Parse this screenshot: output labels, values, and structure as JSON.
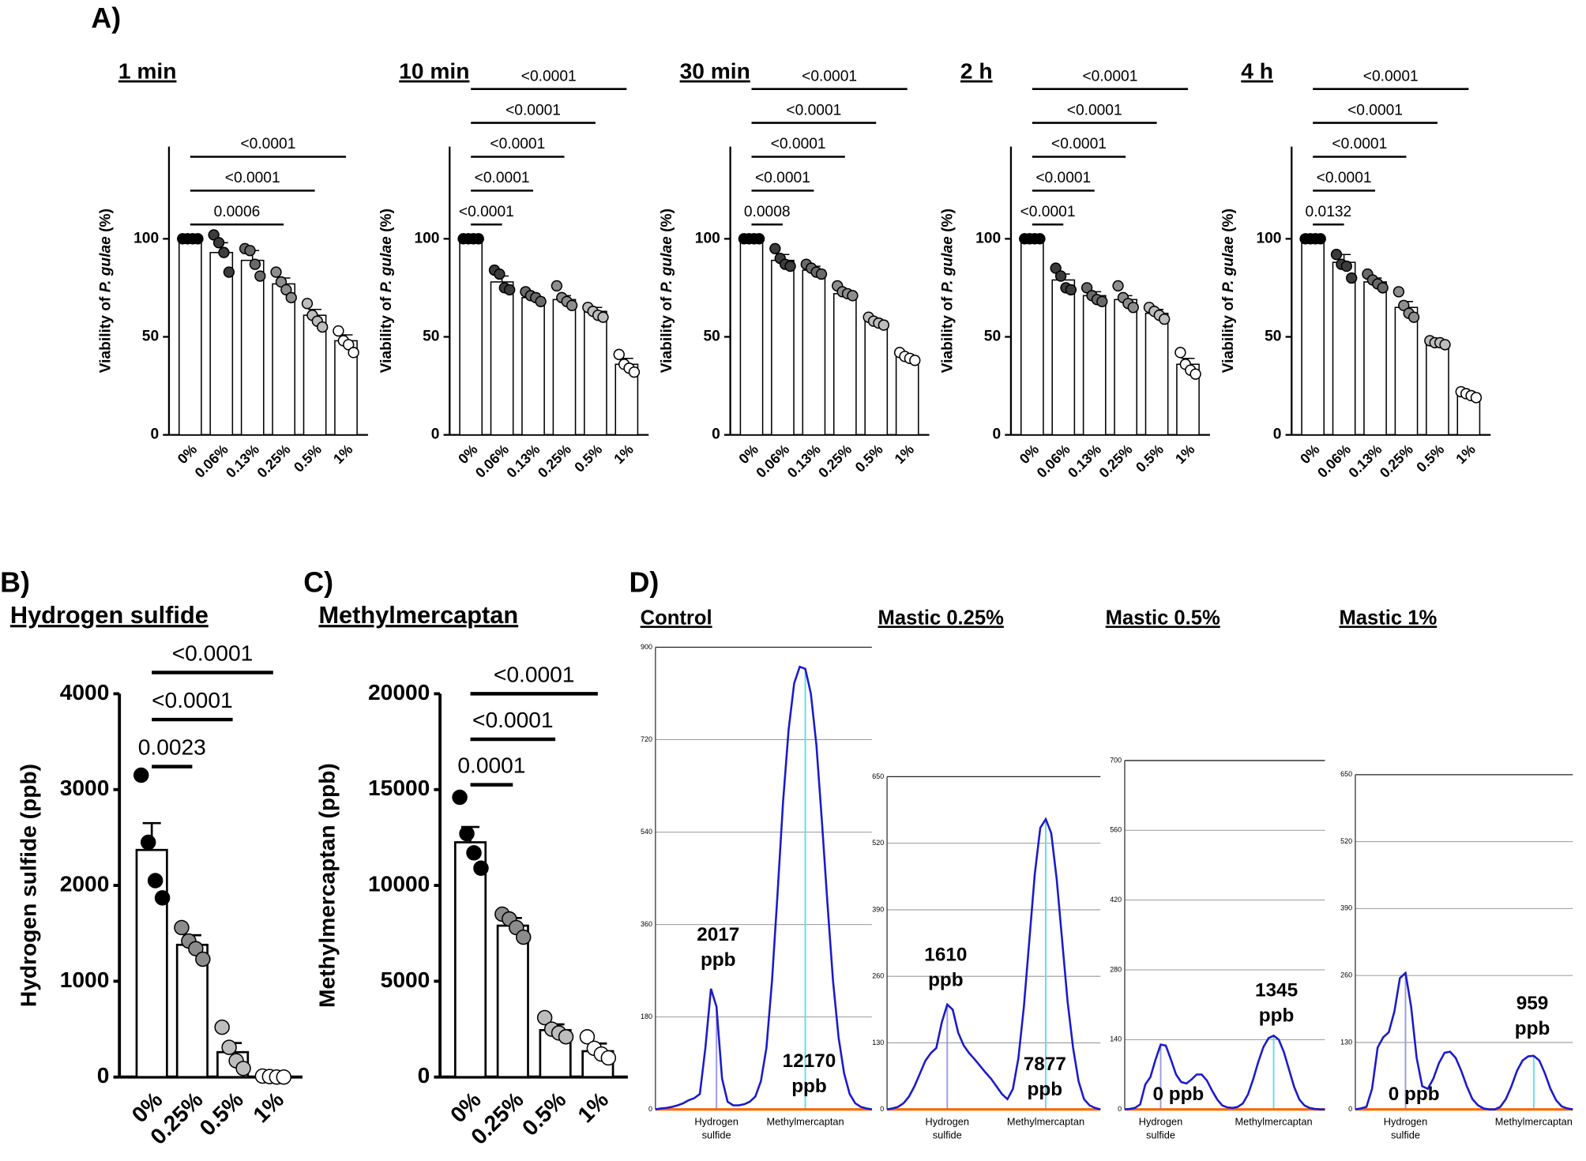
{
  "panel_labels": [
    "A)",
    "B)",
    "C)",
    "D)"
  ],
  "chart_data": [
    {
      "type": "bar",
      "title": "1 min",
      "y_label": [
        "Viability of ",
        "P. gulae",
        " (%)"
      ],
      "categories": [
        "0%",
        "0.06%",
        "0.13%",
        "0.25%",
        "0.5%",
        "1%"
      ],
      "values": [
        100,
        93,
        89,
        77,
        61,
        48
      ],
      "errors": [
        0,
        5,
        5,
        3,
        3,
        3
      ],
      "points": [
        [
          100,
          100,
          100,
          100
        ],
        [
          102,
          98,
          93,
          83
        ],
        [
          95,
          94,
          87,
          81
        ],
        [
          83,
          78,
          74,
          70
        ],
        [
          67,
          61,
          58,
          55
        ],
        [
          53,
          48,
          46,
          42
        ]
      ],
      "point_colors": [
        "#000000",
        "#3c3c3c",
        "#6a6a6a",
        "#8e8e8e",
        "#bdbdbd",
        "#ffffff"
      ],
      "color": "#ffffff",
      "ylim": [
        0,
        147
      ],
      "yticks": [
        0,
        50,
        100
      ],
      "comparisons": [
        {
          "group": "0.25%",
          "label": "0.0006"
        },
        {
          "group": "0.5%",
          "label": "<0.0001"
        },
        {
          "group": "1%",
          "label": "<0.0001"
        }
      ]
    },
    {
      "type": "bar",
      "title": "10 min",
      "y_label": [
        "Viability of ",
        "P. gulae",
        " (%)"
      ],
      "categories": [
        "0%",
        "0.06%",
        "0.13%",
        "0.25%",
        "0.5%",
        "1%"
      ],
      "values": [
        100,
        78,
        70,
        69,
        63,
        36
      ],
      "errors": [
        0,
        3,
        2,
        2,
        2,
        3
      ],
      "points": [
        [
          100,
          100,
          100,
          100
        ],
        [
          84,
          82,
          75,
          74
        ],
        [
          73,
          71,
          70,
          68
        ],
        [
          76,
          70,
          68,
          66
        ],
        [
          65,
          63,
          61,
          60
        ],
        [
          41,
          36,
          34,
          32
        ]
      ],
      "point_colors": [
        "#000000",
        "#3c3c3c",
        "#6a6a6a",
        "#8e8e8e",
        "#bdbdbd",
        "#ffffff"
      ],
      "color": "#ffffff",
      "ylim": [
        0,
        147
      ],
      "yticks": [
        0,
        50,
        100
      ],
      "comparisons": [
        {
          "group": "0.06%",
          "label": "<0.0001"
        },
        {
          "group": "0.13%",
          "label": "<0.0001"
        },
        {
          "group": "0.25%",
          "label": "<0.0001"
        },
        {
          "group": "0.5%",
          "label": "<0.0001"
        },
        {
          "group": "1%",
          "label": "<0.0001"
        }
      ]
    },
    {
      "type": "bar",
      "title": "30 min",
      "y_label": [
        "Viability of ",
        "P. gulae",
        " (%)"
      ],
      "categories": [
        "0%",
        "0.06%",
        "0.13%",
        "0.25%",
        "0.5%",
        "1%"
      ],
      "values": [
        100,
        89,
        84,
        72,
        58,
        40
      ],
      "errors": [
        0,
        3,
        2,
        1,
        1,
        1
      ],
      "points": [
        [
          100,
          100,
          100,
          100
        ],
        [
          95,
          90,
          87,
          86
        ],
        [
          87,
          85,
          83,
          82
        ],
        [
          76,
          73,
          72,
          71
        ],
        [
          60,
          58,
          57,
          56
        ],
        [
          42,
          40,
          39,
          38
        ]
      ],
      "point_colors": [
        "#000000",
        "#3c3c3c",
        "#6a6a6a",
        "#8e8e8e",
        "#bdbdbd",
        "#ffffff"
      ],
      "color": "#ffffff",
      "ylim": [
        0,
        147
      ],
      "yticks": [
        0,
        50,
        100
      ],
      "comparisons": [
        {
          "group": "0.06%",
          "label": "0.0008"
        },
        {
          "group": "0.13%",
          "label": "<0.0001"
        },
        {
          "group": "0.25%",
          "label": "<0.0001"
        },
        {
          "group": "0.5%",
          "label": "<0.0001"
        },
        {
          "group": "1%",
          "label": "<0.0001"
        }
      ]
    },
    {
      "type": "bar",
      "title": "2 h",
      "y_label": [
        "Viability of ",
        "P. gulae",
        " (%)"
      ],
      "categories": [
        "0%",
        "0.06%",
        "0.13%",
        "0.25%",
        "0.5%",
        "1%"
      ],
      "values": [
        100,
        79,
        71,
        69,
        62,
        36
      ],
      "errors": [
        0,
        3,
        2,
        2,
        2,
        3
      ],
      "points": [
        [
          100,
          100,
          100,
          100
        ],
        [
          85,
          81,
          75,
          74
        ],
        [
          75,
          71,
          69,
          68
        ],
        [
          76,
          70,
          67,
          65
        ],
        [
          65,
          63,
          61,
          59
        ],
        [
          42,
          36,
          33,
          31
        ]
      ],
      "point_colors": [
        "#000000",
        "#3c3c3c",
        "#6a6a6a",
        "#8e8e8e",
        "#bdbdbd",
        "#ffffff"
      ],
      "color": "#ffffff",
      "ylim": [
        0,
        147
      ],
      "yticks": [
        0,
        50,
        100
      ],
      "comparisons": [
        {
          "group": "0.06%",
          "label": "<0.0001"
        },
        {
          "group": "0.13%",
          "label": "<0.0001"
        },
        {
          "group": "0.25%",
          "label": "<0.0001"
        },
        {
          "group": "0.5%",
          "label": "<0.0001"
        },
        {
          "group": "1%",
          "label": "<0.0001"
        }
      ]
    },
    {
      "type": "bar",
      "title": "4 h",
      "y_label": [
        "Viability of ",
        "P. gulae",
        " (%)"
      ],
      "categories": [
        "0%",
        "0.06%",
        "0.13%",
        "0.25%",
        "0.5%",
        "1%"
      ],
      "values": [
        100,
        88,
        78,
        65,
        46,
        21
      ],
      "errors": [
        0,
        4,
        2,
        3,
        1,
        1
      ],
      "points": [
        [
          100,
          100,
          100,
          100
        ],
        [
          92,
          87,
          86,
          80
        ],
        [
          82,
          79,
          77,
          75
        ],
        [
          73,
          66,
          62,
          60
        ],
        [
          48,
          47,
          47,
          46
        ],
        [
          22,
          21,
          20,
          19
        ]
      ],
      "point_colors": [
        "#000000",
        "#3c3c3c",
        "#6a6a6a",
        "#8e8e8e",
        "#bdbdbd",
        "#ffffff"
      ],
      "color": "#ffffff",
      "ylim": [
        0,
        147
      ],
      "yticks": [
        0,
        50,
        100
      ],
      "comparisons": [
        {
          "group": "0.06%",
          "label": "0.0132"
        },
        {
          "group": "0.13%",
          "label": "<0.0001"
        },
        {
          "group": "0.25%",
          "label": "<0.0001"
        },
        {
          "group": "0.5%",
          "label": "<0.0001"
        },
        {
          "group": "1%",
          "label": "<0.0001"
        }
      ]
    },
    {
      "type": "bar",
      "title": "Hydrogen sulfide",
      "y_label": [
        "Hydrogen sulfide (ppb)"
      ],
      "categories": [
        "0%",
        "0.25%",
        "0.5%",
        "1%"
      ],
      "values": [
        2370,
        1380,
        260,
        0
      ],
      "errors": [
        280,
        100,
        95,
        0
      ],
      "points": [
        [
          3150,
          2450,
          2050,
          1870
        ],
        [
          1560,
          1420,
          1340,
          1230
        ],
        [
          520,
          310,
          170,
          90
        ],
        [
          10,
          5,
          0,
          0
        ]
      ],
      "point_colors": [
        "#000000",
        "#8c8c8c",
        "#bdbdbd",
        "#ffffff"
      ],
      "color": "#ffffff",
      "ylim": [
        0,
        4000
      ],
      "yticks": [
        0,
        1000,
        2000,
        3000,
        4000
      ],
      "comparisons": [
        {
          "group": "0.25%",
          "label": "0.0023"
        },
        {
          "group": "0.5%",
          "label": "<0.0001"
        },
        {
          "group": "1%",
          "label": "<0.0001"
        }
      ]
    },
    {
      "type": "bar",
      "title": "Methylmercaptan",
      "y_label": [
        "Methylmercaptan (ppb)"
      ],
      "categories": [
        "0%",
        "0.25%",
        "0.5%",
        "1%"
      ],
      "values": [
        12250,
        7900,
        2450,
        1350
      ],
      "errors": [
        800,
        400,
        300,
        400
      ],
      "points": [
        [
          14600,
          12700,
          11700,
          10900
        ],
        [
          8500,
          8250,
          7800,
          7300
        ],
        [
          3100,
          2500,
          2300,
          2100
        ],
        [
          2100,
          1500,
          1200,
          1000
        ]
      ],
      "point_colors": [
        "#000000",
        "#8c8c8c",
        "#bdbdbd",
        "#ffffff"
      ],
      "color": "#ffffff",
      "ylim": [
        0,
        20000
      ],
      "yticks": [
        0,
        5000,
        10000,
        15000,
        20000
      ],
      "comparisons": [
        {
          "group": "0.25%",
          "label": "0.0001"
        },
        {
          "group": "0.5%",
          "label": "<0.0001"
        },
        {
          "group": "1%",
          "label": "<0.0001"
        }
      ]
    },
    {
      "type": "line",
      "title": "Control",
      "ylim": [
        0,
        900
      ],
      "yticks": [
        0,
        180,
        360,
        540,
        720,
        900
      ],
      "grid": true,
      "baseline_color": "#ff6600",
      "series": [
        {
          "color": "#1a1acc",
          "values": [
            0,
            2,
            3,
            5,
            8,
            12,
            18,
            22,
            30,
            120,
            235,
            200,
            60,
            15,
            8,
            8,
            10,
            15,
            25,
            55,
            120,
            250,
            420,
            600,
            740,
            830,
            862,
            858,
            810,
            710,
            560,
            400,
            250,
            140,
            70,
            30,
            12,
            5,
            2,
            0
          ]
        }
      ],
      "annotations": [
        [
          "2017",
          "ppb"
        ],
        [
          "12170",
          "ppb"
        ]
      ],
      "peak_names": [
        [
          "Hydrogen",
          "sulfide"
        ],
        [
          "Methylmercaptan"
        ]
      ]
    },
    {
      "type": "line",
      "title": "Mastic 0.25%",
      "ylim": [
        0,
        650
      ],
      "yticks": [
        0,
        130,
        260,
        390,
        520,
        650
      ],
      "grid": true,
      "baseline_color": "#ff6600",
      "series": [
        {
          "color": "#1a1acc",
          "values": [
            0,
            2,
            5,
            12,
            25,
            45,
            70,
            95,
            110,
            120,
            170,
            205,
            195,
            150,
            125,
            110,
            98,
            85,
            72,
            60,
            45,
            30,
            20,
            40,
            100,
            200,
            330,
            460,
            550,
            567,
            540,
            450,
            330,
            210,
            120,
            55,
            20,
            8,
            3,
            0
          ]
        }
      ],
      "annotations": [
        [
          "1610",
          "ppb"
        ],
        [
          "7877",
          "ppb"
        ]
      ],
      "peak_names": [
        [
          "Hydrogen",
          "sulfide"
        ],
        [
          "Methylmercaptan"
        ]
      ]
    },
    {
      "type": "line",
      "title": "Mastic 0.5%",
      "ylim": [
        0,
        700
      ],
      "yticks": [
        0,
        140,
        280,
        420,
        560,
        700
      ],
      "grid": true,
      "baseline_color": "#ff6600",
      "series": [
        {
          "color": "#1a1acc",
          "values": [
            0,
            1,
            3,
            10,
            50,
            65,
            100,
            130,
            128,
            100,
            70,
            55,
            52,
            60,
            70,
            70,
            58,
            38,
            20,
            8,
            4,
            3,
            5,
            12,
            30,
            60,
            95,
            125,
            143,
            148,
            140,
            115,
            80,
            45,
            20,
            8,
            3,
            1,
            0,
            0
          ]
        }
      ],
      "annotations": [
        [
          "0 ppb"
        ],
        [
          "1345",
          "ppb"
        ]
      ],
      "peak_names": [
        [
          "Hydrogen",
          "sulfide"
        ],
        [
          "Methylmercaptan"
        ]
      ]
    },
    {
      "type": "line",
      "title": "Mastic 1%",
      "ylim": [
        0,
        650
      ],
      "yticks": [
        0,
        130,
        260,
        390,
        520,
        650
      ],
      "grid": true,
      "baseline_color": "#ff6600",
      "series": [
        {
          "color": "#1a1acc",
          "values": [
            0,
            2,
            5,
            40,
            120,
            140,
            150,
            190,
            255,
            265,
            200,
            100,
            45,
            40,
            60,
            90,
            110,
            112,
            100,
            75,
            45,
            20,
            8,
            2,
            0,
            0,
            5,
            20,
            45,
            75,
            95,
            103,
            104,
            95,
            70,
            40,
            18,
            6,
            2,
            0
          ]
        }
      ],
      "annotations": [
        [
          "0 ppb"
        ],
        [
          "959",
          "ppb"
        ]
      ],
      "peak_names": [
        [
          "Hydrogen",
          "sulfide"
        ],
        [
          "Methylmercaptan"
        ]
      ]
    }
  ]
}
